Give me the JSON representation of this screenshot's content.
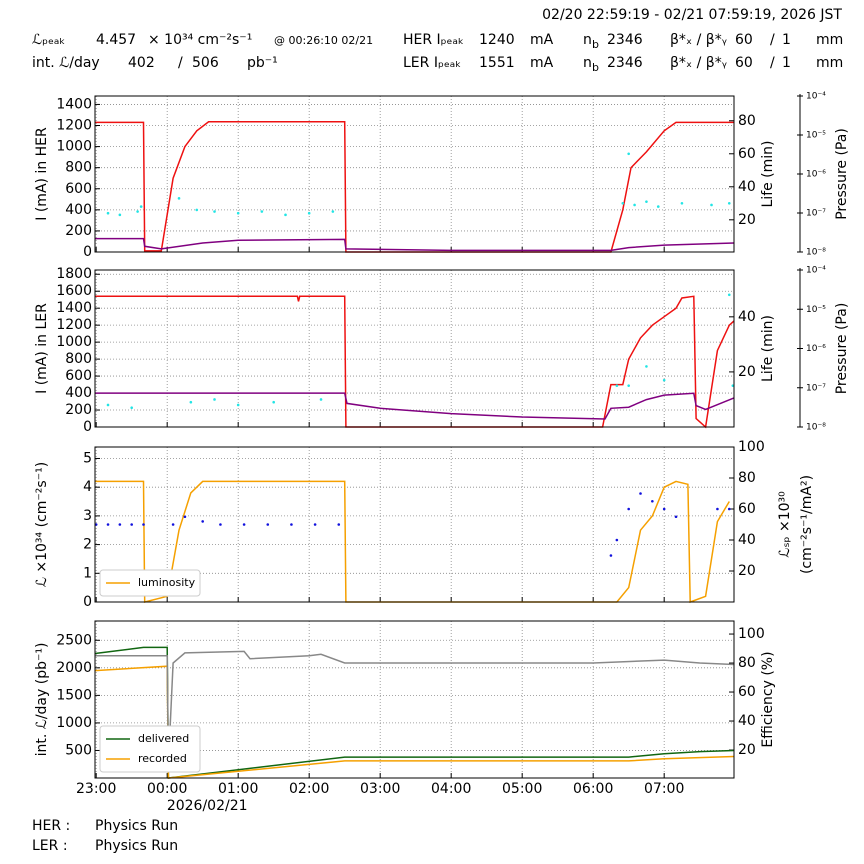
{
  "header": {
    "time_range": "02/20 22:59:19 - 02/21 07:59:19, 2026 JST",
    "lumi_label": "ℒₚₑₐₖ",
    "lumi_peak": 4.457,
    "lumi_unit": "× 10³⁴ cm⁻²s⁻¹",
    "lumi_time": "@ 00:26:10 02/21",
    "int_label": "int. ℒ/day",
    "int_recorded": 402,
    "int_sep": "/",
    "int_delivered": 506,
    "int_unit": "pb⁻¹",
    "rings": [
      {
        "label": "HER Iₚₑₐₖ",
        "current": 1240,
        "current_unit": "mA",
        "nb_base": "n",
        "nb_sub": "b",
        "bunches": 2346,
        "beta_label": "β*ₓ / β*ᵧ",
        "beta_x": 60,
        "beta_sep": "/",
        "beta_y": 1,
        "beta_unit": "mm"
      },
      {
        "label": "LER Iₚₑₐₖ",
        "current": 1551,
        "current_unit": "mA",
        "nb_base": "n",
        "nb_sub": "b",
        "bunches": 2346,
        "beta_label": "β*ₓ / β*ᵧ",
        "beta_x": 60,
        "beta_sep": "/",
        "beta_y": 1,
        "beta_unit": "mm"
      }
    ]
  },
  "footer": {
    "rows": [
      {
        "ring": "HER :",
        "status": "Physics Run"
      },
      {
        "ring": "LER :",
        "status": "Physics Run"
      }
    ]
  },
  "chart_data": [
    {
      "type": "line",
      "ylabel": [
        "I (mA) in HER"
      ],
      "y2label": [
        "Life (min)"
      ],
      "y3label": "Pressure (Pa)",
      "grid": true,
      "xlim": [
        "22:59",
        "07:59"
      ],
      "xticks": [
        "23:00",
        "00:00",
        "01:00",
        "02:00",
        "03:00",
        "04:00",
        "05:00",
        "06:00",
        "07:00"
      ],
      "ylim": [
        0,
        1480
      ],
      "yticks": [
        0,
        200,
        400,
        600,
        800,
        1000,
        1200,
        1400
      ],
      "y2lim": [
        0.5,
        95
      ],
      "y2ticks": [
        20,
        40,
        60,
        80
      ],
      "y3lim": [
        1e-08,
        0.0001
      ],
      "y3ticks": [
        {
          "value": 1e-08,
          "label": "10⁻⁸"
        },
        {
          "value": 1e-07,
          "label": "10⁻⁷"
        },
        {
          "value": 1e-06,
          "label": "10⁻⁶"
        },
        {
          "value": 1e-05,
          "label": "10⁻⁵"
        },
        {
          "value": 0.0001,
          "label": "10⁻⁴"
        }
      ],
      "series": [
        {
          "type": "line",
          "color": "#ee1111",
          "x": [
            "22:59",
            "23:40",
            "23:41",
            "23:55",
            "00:05",
            "00:15",
            "00:25",
            "00:35",
            "02:30",
            "02:31",
            "06:15",
            "06:25",
            "06:32",
            "06:45",
            "07:00",
            "07:10",
            "07:59"
          ],
          "values": [
            1230,
            1230,
            10,
            10,
            700,
            1000,
            1150,
            1235,
            1235,
            0,
            0,
            400,
            800,
            950,
            1150,
            1230,
            1230
          ]
        },
        {
          "type": "line",
          "axis": "y3",
          "color": "#800080",
          "x": [
            "22:59",
            "23:40",
            "23:41",
            "23:55",
            "00:30",
            "01:00",
            "02:30",
            "02:31",
            "04:00",
            "06:15",
            "06:30",
            "07:00",
            "07:59"
          ],
          "values": [
            2.2e-08,
            2.2e-08,
            1.4e-08,
            1.2e-08,
            1.7e-08,
            2e-08,
            2.1e-08,
            1.2e-08,
            1.1e-08,
            1.1e-08,
            1.3e-08,
            1.5e-08,
            1.7e-08
          ]
        },
        {
          "type": "scatter",
          "axis": "y2",
          "color": "#22e5e5",
          "x": [
            "23:10",
            "23:20",
            "23:35",
            "23:38",
            "00:10",
            "00:25",
            "00:40",
            "01:00",
            "01:20",
            "01:40",
            "02:00",
            "02:20",
            "06:25",
            "06:30",
            "06:35",
            "06:45",
            "06:55",
            "07:15",
            "07:40",
            "07:55"
          ],
          "values": [
            24,
            23,
            25,
            28,
            33,
            26,
            25,
            24,
            25,
            23,
            24,
            25,
            30,
            60,
            29,
            31,
            28,
            30,
            29,
            30
          ]
        }
      ]
    },
    {
      "type": "line",
      "ylabel": [
        "I (mA) in LER"
      ],
      "y2label": [
        "Life (min)"
      ],
      "y3label": "Pressure (Pa)",
      "grid": true,
      "xlim": [
        "22:59",
        "07:59"
      ],
      "xticks": [
        "23:00",
        "00:00",
        "01:00",
        "02:00",
        "03:00",
        "04:00",
        "05:00",
        "06:00",
        "07:00"
      ],
      "ylim": [
        0,
        1850
      ],
      "yticks": [
        0,
        200,
        400,
        600,
        800,
        1000,
        1200,
        1400,
        1600,
        1800
      ],
      "y2lim": [
        0,
        57
      ],
      "y2ticks": [
        20,
        40
      ],
      "y3lim": [
        1e-08,
        0.0001
      ],
      "y3ticks": [
        {
          "value": 1e-08,
          "label": "10⁻⁸"
        },
        {
          "value": 1e-07,
          "label": "10⁻⁷"
        },
        {
          "value": 1e-06,
          "label": "10⁻⁶"
        },
        {
          "value": 1e-05,
          "label": "10⁻⁵"
        },
        {
          "value": 0.0001,
          "label": "10⁻⁴"
        }
      ],
      "series": [
        {
          "type": "line",
          "color": "#ee1111",
          "x": [
            "22:59",
            "01:50",
            "01:51",
            "01:52",
            "02:30",
            "02:31",
            "06:08",
            "06:15",
            "06:25",
            "06:30",
            "06:40",
            "06:50",
            "07:00",
            "07:10",
            "07:15",
            "07:25",
            "07:27",
            "07:35",
            "07:45",
            "07:55",
            "07:59"
          ],
          "values": [
            1540,
            1540,
            1480,
            1540,
            1540,
            0,
            0,
            500,
            500,
            800,
            1050,
            1200,
            1300,
            1400,
            1520,
            1540,
            100,
            0,
            900,
            1200,
            1250
          ]
        },
        {
          "type": "line",
          "axis": "y3",
          "color": "#800080",
          "x": [
            "22:59",
            "02:30",
            "02:32",
            "03:00",
            "04:00",
            "05:00",
            "06:10",
            "06:15",
            "06:30",
            "06:45",
            "07:00",
            "07:25",
            "07:27",
            "07:35",
            "07:59"
          ],
          "values": [
            7.3e-08,
            7.3e-08,
            4e-08,
            3e-08,
            2.2e-08,
            1.8e-08,
            1.6e-08,
            3e-08,
            3.2e-08,
            5e-08,
            6.5e-08,
            7.2e-08,
            3.5e-08,
            2.8e-08,
            5.5e-08
          ]
        },
        {
          "type": "scatter",
          "axis": "y2",
          "color": "#22e5e5",
          "x": [
            "23:10",
            "23:30",
            "00:20",
            "00:40",
            "01:00",
            "01:30",
            "02:10",
            "06:20",
            "06:30",
            "06:45",
            "07:00",
            "07:55",
            "07:58"
          ],
          "values": [
            8,
            7,
            9,
            10,
            8,
            9,
            10,
            15,
            15,
            22,
            17,
            48,
            15
          ]
        }
      ]
    },
    {
      "type": "line",
      "ylabel": [
        "ℒ ×10³⁴ (cm⁻²s⁻¹)"
      ],
      "y2label": [
        "ℒₛₚ ×10³⁰",
        "(cm⁻²s⁻¹/mA²)"
      ],
      "grid": true,
      "legend": "lower left",
      "xlim": [
        "22:59",
        "07:59"
      ],
      "xticks": [
        "23:00",
        "00:00",
        "01:00",
        "02:00",
        "03:00",
        "04:00",
        "05:00",
        "06:00",
        "07:00"
      ],
      "ylim": [
        0,
        5.4
      ],
      "yticks": [
        0,
        1,
        2,
        3,
        4,
        5
      ],
      "y2lim": [
        0,
        100
      ],
      "y2ticks": [
        20,
        40,
        60,
        80,
        100
      ],
      "series": [
        {
          "type": "line",
          "name": "luminosity",
          "color": "#f5a000",
          "x": [
            "22:59",
            "23:40",
            "23:41",
            "00:00",
            "00:10",
            "00:20",
            "00:30",
            "02:30",
            "02:31",
            "06:20",
            "06:30",
            "06:40",
            "06:50",
            "07:00",
            "07:10",
            "07:20",
            "07:22",
            "07:35",
            "07:45",
            "07:55"
          ],
          "values": [
            4.2,
            4.2,
            0,
            0.2,
            2.5,
            3.8,
            4.2,
            4.2,
            0,
            0,
            0.5,
            2.5,
            3,
            4,
            4.2,
            4.1,
            0,
            0.2,
            2.8,
            3.5
          ]
        },
        {
          "type": "scatter",
          "axis": "y2",
          "color": "#1111dd",
          "x": [
            "23:00",
            "23:10",
            "23:20",
            "23:30",
            "23:40",
            "00:05",
            "00:15",
            "00:30",
            "00:45",
            "01:05",
            "01:25",
            "01:45",
            "02:05",
            "02:25",
            "06:15",
            "06:20",
            "06:30",
            "06:40",
            "06:50",
            "07:00",
            "07:10",
            "07:45",
            "07:55"
          ],
          "values": [
            50,
            50,
            50,
            50,
            50,
            50,
            55,
            52,
            50,
            50,
            50,
            50,
            50,
            50,
            30,
            40,
            60,
            70,
            65,
            60,
            55,
            60,
            60
          ]
        }
      ]
    },
    {
      "type": "line",
      "ylabel": [
        "int. ℒ/day (pb⁻¹)"
      ],
      "y2label": [
        "Efficiency (%)"
      ],
      "xlabel": "2026/02/21",
      "grid": true,
      "legend": "lower left",
      "xlim": [
        "22:59",
        "07:59"
      ],
      "xticks": [
        "23:00",
        "00:00",
        "01:00",
        "02:00",
        "03:00",
        "04:00",
        "05:00",
        "06:00",
        "07:00"
      ],
      "ylim": [
        0,
        2850
      ],
      "yticks": [
        500,
        1000,
        1500,
        2000,
        2500
      ],
      "y2lim": [
        0.7,
        109
      ],
      "y2ticks": [
        20,
        40,
        60,
        80,
        100
      ],
      "series": [
        {
          "type": "line",
          "name": "delivered",
          "color": "#116611",
          "x": [
            "22:59",
            "23:40",
            "00:00",
            "00:01",
            "02:30",
            "06:30",
            "07:00",
            "07:30",
            "07:59"
          ],
          "values": [
            2260,
            2370,
            2370,
            0,
            380,
            380,
            440,
            480,
            500
          ]
        },
        {
          "type": "line",
          "name": "recorded",
          "color": "#f5a000",
          "x": [
            "22:59",
            "00:00",
            "00:01",
            "02:30",
            "06:30",
            "07:00",
            "07:59"
          ],
          "values": [
            1950,
            2030,
            0,
            310,
            310,
            350,
            390
          ]
        },
        {
          "type": "line",
          "axis": "y2",
          "color": "#888888",
          "x": [
            "22:59",
            "00:00",
            "00:01",
            "00:05",
            "00:15",
            "01:05",
            "01:10",
            "02:00",
            "02:10",
            "02:30",
            "06:00",
            "07:00",
            "07:30",
            "07:59"
          ],
          "values": [
            85,
            85,
            10,
            80,
            87,
            88,
            83,
            85,
            86,
            80,
            80,
            82,
            80,
            79
          ]
        }
      ]
    }
  ]
}
